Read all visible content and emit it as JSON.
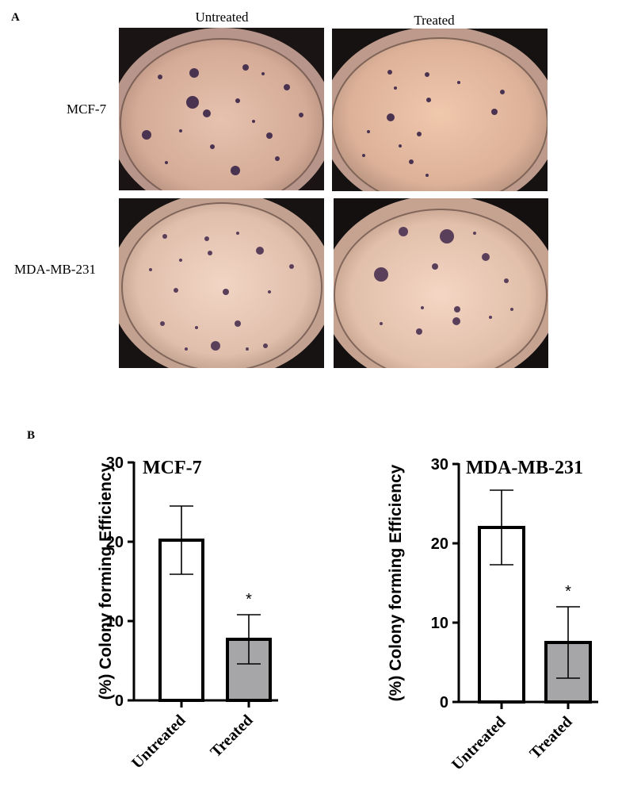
{
  "panel_a": {
    "letter": "A",
    "columns": [
      "Untreated",
      "Treated"
    ],
    "rows": [
      "MCF-7",
      "MDA-MB-231"
    ]
  },
  "panel_b": {
    "letter": "B"
  },
  "chart_data": [
    {
      "type": "bar",
      "title": "MCF-7",
      "ylabel": "(%) Colony forming Efficiency",
      "categories": [
        "Untreated",
        "Treated"
      ],
      "values": [
        20.2,
        7.7
      ],
      "error": [
        4.3,
        3.1
      ],
      "significance": [
        "",
        "*"
      ],
      "bar_colors": [
        "#ffffff",
        "#a6a6a8"
      ],
      "ylim": [
        0,
        30
      ],
      "yticks": [
        0,
        10,
        20,
        30
      ],
      "grid": false
    },
    {
      "type": "bar",
      "title": "MDA-MB-231",
      "ylabel": "(%) Colony forming Efficiency",
      "categories": [
        "Untreated",
        "Treated"
      ],
      "values": [
        22.0,
        7.5
      ],
      "error": [
        4.7,
        4.5
      ],
      "significance": [
        "",
        "*"
      ],
      "bar_colors": [
        "#ffffff",
        "#a6a6a8"
      ],
      "ylim": [
        0,
        30
      ],
      "yticks": [
        0,
        10,
        20,
        30
      ],
      "grid": false
    }
  ]
}
